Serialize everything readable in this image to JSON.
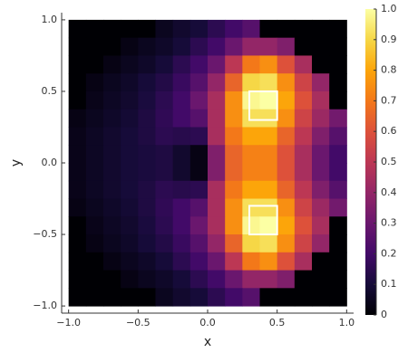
{
  "chart_data": {
    "type": "heatmap",
    "xlabel": "x",
    "ylabel": "y",
    "xlim": [
      -1.05,
      1.05
    ],
    "ylim": [
      -1.05,
      1.05
    ],
    "xticks": [
      {
        "value": -1,
        "label": "−1.0"
      },
      {
        "value": -0.5,
        "label": "−0.5"
      },
      {
        "value": 0,
        "label": "0.0"
      },
      0.5,
      {
        "value": 1,
        "label": "1.0"
      }
    ],
    "yticks": [
      {
        "value": -1,
        "label": "−1.0"
      },
      {
        "value": -0.5,
        "label": "−0.5"
      },
      {
        "value": 0,
        "label": "0.0"
      },
      0.5,
      {
        "value": 1,
        "label": "1.0"
      }
    ],
    "x": [
      -0.9375,
      -0.8125,
      -0.6875,
      -0.5625,
      -0.4375,
      -0.3125,
      -0.1875,
      -0.0625,
      0.0625,
      0.1875,
      0.3125,
      0.4375,
      0.5625,
      0.6875,
      0.8125,
      0.9375
    ],
    "y": [
      0.9375,
      0.8125,
      0.6875,
      0.5625,
      0.4375,
      0.3125,
      0.1875,
      0.0625,
      -0.0625,
      -0.1875,
      -0.3125,
      -0.4375,
      -0.5625,
      -0.6875,
      -0.8125,
      -0.9375
    ],
    "z": [
      [
        0,
        0,
        0,
        0,
        0,
        0.05,
        0.08,
        0.1,
        0.15,
        0.2,
        0.25,
        0,
        0,
        0,
        0,
        0
      ],
      [
        0,
        0,
        0,
        0.03,
        0.05,
        0.07,
        0.1,
        0.15,
        0.2,
        0.3,
        0.4,
        0.4,
        0.35,
        0,
        0,
        0
      ],
      [
        0,
        0,
        0.03,
        0.05,
        0.07,
        0.1,
        0.15,
        0.2,
        0.3,
        0.5,
        0.7,
        0.75,
        0.6,
        0.45,
        0,
        0
      ],
      [
        0,
        0.03,
        0.05,
        0.07,
        0.1,
        0.13,
        0.18,
        0.25,
        0.4,
        0.65,
        0.9,
        0.92,
        0.75,
        0.55,
        0.4,
        0
      ],
      [
        0,
        0.04,
        0.06,
        0.08,
        0.11,
        0.15,
        0.2,
        0.3,
        0.45,
        0.75,
        0.98,
        1.0,
        0.8,
        0.6,
        0.45,
        0
      ],
      [
        0.03,
        0.05,
        0.07,
        0.09,
        0.12,
        0.16,
        0.2,
        0.25,
        0.45,
        0.75,
        0.92,
        0.92,
        0.75,
        0.55,
        0.42,
        0.32
      ],
      [
        0.04,
        0.06,
        0.08,
        0.1,
        0.12,
        0.15,
        0.14,
        0.15,
        0.45,
        0.7,
        0.8,
        0.8,
        0.65,
        0.5,
        0.35,
        0.25
      ],
      [
        0.04,
        0.06,
        0.08,
        0.1,
        0.11,
        0.12,
        0.08,
        0.03,
        0.35,
        0.65,
        0.72,
        0.72,
        0.6,
        0.45,
        0.3,
        0.2
      ],
      [
        0.04,
        0.06,
        0.08,
        0.1,
        0.11,
        0.12,
        0.08,
        0.03,
        0.35,
        0.65,
        0.72,
        0.72,
        0.6,
        0.45,
        0.3,
        0.2
      ],
      [
        0.04,
        0.06,
        0.08,
        0.1,
        0.12,
        0.15,
        0.14,
        0.15,
        0.45,
        0.7,
        0.8,
        0.8,
        0.65,
        0.5,
        0.35,
        0.25
      ],
      [
        0.03,
        0.05,
        0.07,
        0.09,
        0.12,
        0.16,
        0.2,
        0.25,
        0.45,
        0.75,
        0.92,
        0.92,
        0.75,
        0.55,
        0.42,
        0.32
      ],
      [
        0,
        0.04,
        0.06,
        0.08,
        0.11,
        0.15,
        0.2,
        0.3,
        0.45,
        0.75,
        0.98,
        1.0,
        0.8,
        0.6,
        0.45,
        0
      ],
      [
        0,
        0.03,
        0.05,
        0.07,
        0.1,
        0.13,
        0.18,
        0.25,
        0.4,
        0.65,
        0.9,
        0.92,
        0.75,
        0.55,
        0.4,
        0
      ],
      [
        0,
        0,
        0.03,
        0.05,
        0.07,
        0.1,
        0.15,
        0.2,
        0.3,
        0.5,
        0.7,
        0.75,
        0.6,
        0.45,
        0,
        0
      ],
      [
        0,
        0,
        0,
        0.03,
        0.05,
        0.07,
        0.1,
        0.15,
        0.2,
        0.3,
        0.4,
        0.4,
        0.35,
        0,
        0,
        0
      ],
      [
        0,
        0,
        0,
        0,
        0,
        0.05,
        0.08,
        0.1,
        0.15,
        0.2,
        0.25,
        0,
        0,
        0,
        0,
        0
      ]
    ],
    "clim": [
      0,
      1
    ],
    "colormap": [
      "#000004",
      "#160b39",
      "#420a68",
      "#6a176e",
      "#932667",
      "#bc3754",
      "#dd513a",
      "#f37819",
      "#fca50a",
      "#f6d746",
      "#fcffa4"
    ],
    "colorbar_ticks": [
      0,
      0.1,
      0.2,
      0.3,
      0.4,
      0.5,
      0.6,
      0.7,
      0.8,
      0.9,
      {
        "value": 1,
        "label": "1.0"
      }
    ],
    "rects": [
      {
        "x": [
          0.3,
          0.5
        ],
        "y": [
          0.3,
          0.5
        ]
      },
      {
        "x": [
          0.3,
          0.5
        ],
        "y": [
          -0.5,
          -0.3
        ]
      }
    ],
    "rect_color": "#ffffff"
  }
}
